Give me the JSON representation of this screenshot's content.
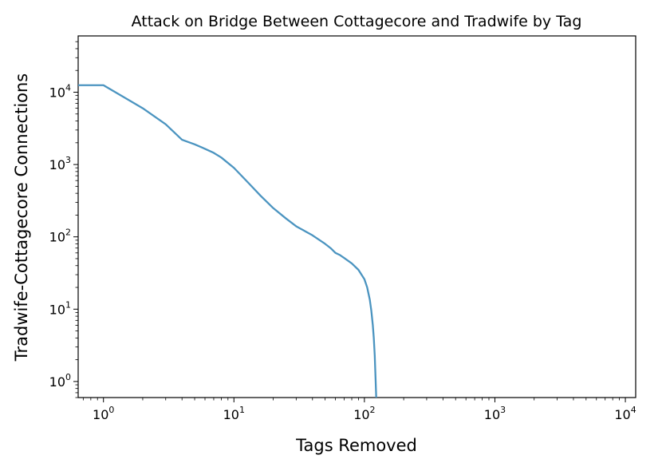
{
  "chart_data": {
    "type": "line",
    "title": "Attack on Bridge Between Cottagecore and Tradwife by Tag",
    "xlabel": "Tags Removed",
    "ylabel": "Tradwife-Cottagecore Connections",
    "xscale": "log",
    "yscale": "log",
    "xlim": [
      0.64,
      12000
    ],
    "ylim": [
      0.6,
      60000
    ],
    "grid": false,
    "line_color": "#4b94c0",
    "x_ticks": [
      {
        "mantissa": "10",
        "exp": "0",
        "value": 1
      },
      {
        "mantissa": "10",
        "exp": "1",
        "value": 10
      },
      {
        "mantissa": "10",
        "exp": "2",
        "value": 100
      },
      {
        "mantissa": "10",
        "exp": "3",
        "value": 1000
      },
      {
        "mantissa": "10",
        "exp": "4",
        "value": 10000
      }
    ],
    "y_ticks": [
      {
        "mantissa": "10",
        "exp": "0",
        "value": 1
      },
      {
        "mantissa": "10",
        "exp": "1",
        "value": 10
      },
      {
        "mantissa": "10",
        "exp": "2",
        "value": 100
      },
      {
        "mantissa": "10",
        "exp": "3",
        "value": 1000
      },
      {
        "mantissa": "10",
        "exp": "4",
        "value": 10000
      }
    ],
    "series": [
      {
        "x": [
          0.64,
          1,
          2,
          3,
          4,
          5,
          6,
          7,
          8,
          10,
          13,
          16,
          20,
          25,
          30,
          40,
          50,
          55,
          60,
          65,
          70,
          80,
          90,
          100,
          105,
          110,
          113,
          116,
          118,
          120,
          121,
          122,
          122.5,
          123,
          123.2
        ],
        "y": [
          12500,
          12500,
          6000,
          3600,
          2200,
          1900,
          1650,
          1450,
          1250,
          900,
          550,
          370,
          250,
          180,
          140,
          105,
          80,
          70,
          60,
          56,
          51,
          43,
          35,
          26,
          20,
          13.5,
          9.5,
          6,
          4,
          2.3,
          1.5,
          1.0,
          0.8,
          0.65,
          0.6
        ]
      }
    ]
  }
}
